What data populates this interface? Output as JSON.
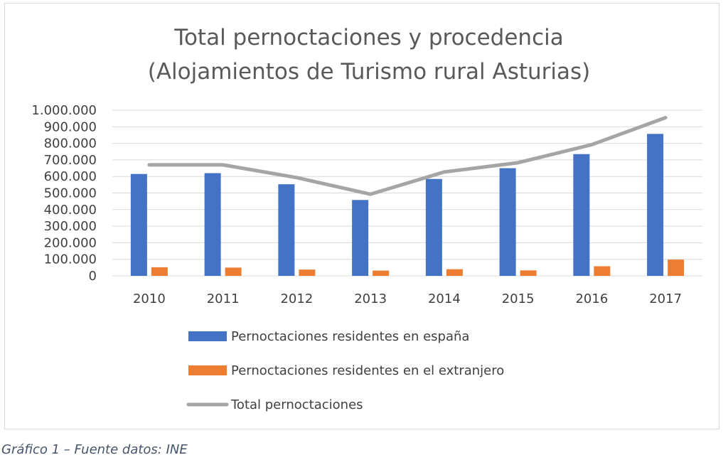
{
  "chart_data": {
    "type": "bar",
    "title_lines": [
      "Total pernoctaciones y procedencia",
      "(Alojamientos de Turismo rural Asturias)"
    ],
    "categories": [
      "2010",
      "2011",
      "2012",
      "2013",
      "2014",
      "2015",
      "2016",
      "2017"
    ],
    "series": [
      {
        "name": "Pernoctaciones residentes en españa",
        "kind": "bar",
        "color": "#4472c4",
        "values": [
          615000,
          620000,
          553000,
          458000,
          585000,
          650000,
          735000,
          857000
        ]
      },
      {
        "name": "Pernoctaciones residentes en el extranjero",
        "kind": "bar",
        "color": "#ed7d31",
        "values": [
          52000,
          50000,
          38000,
          32000,
          40000,
          33000,
          58000,
          98000
        ]
      },
      {
        "name": "Total pernoctaciones",
        "kind": "line",
        "color": "#a5a5a5",
        "values": [
          670000,
          670000,
          593000,
          493000,
          627000,
          683000,
          792000,
          955000
        ]
      }
    ],
    "ylim": [
      0,
      1000000
    ],
    "y_ticks": [
      0,
      100000,
      200000,
      300000,
      400000,
      500000,
      600000,
      700000,
      800000,
      900000,
      1000000
    ],
    "y_tick_labels": [
      "0",
      "100.000",
      "200.000",
      "300.000",
      "400.000",
      "500.000",
      "600.000",
      "700.000",
      "800.000",
      "900.000",
      "1.000.000"
    ],
    "grid": true,
    "legend_position": "bottom"
  },
  "caption": "Gráfico 1 – Fuente datos: INE"
}
